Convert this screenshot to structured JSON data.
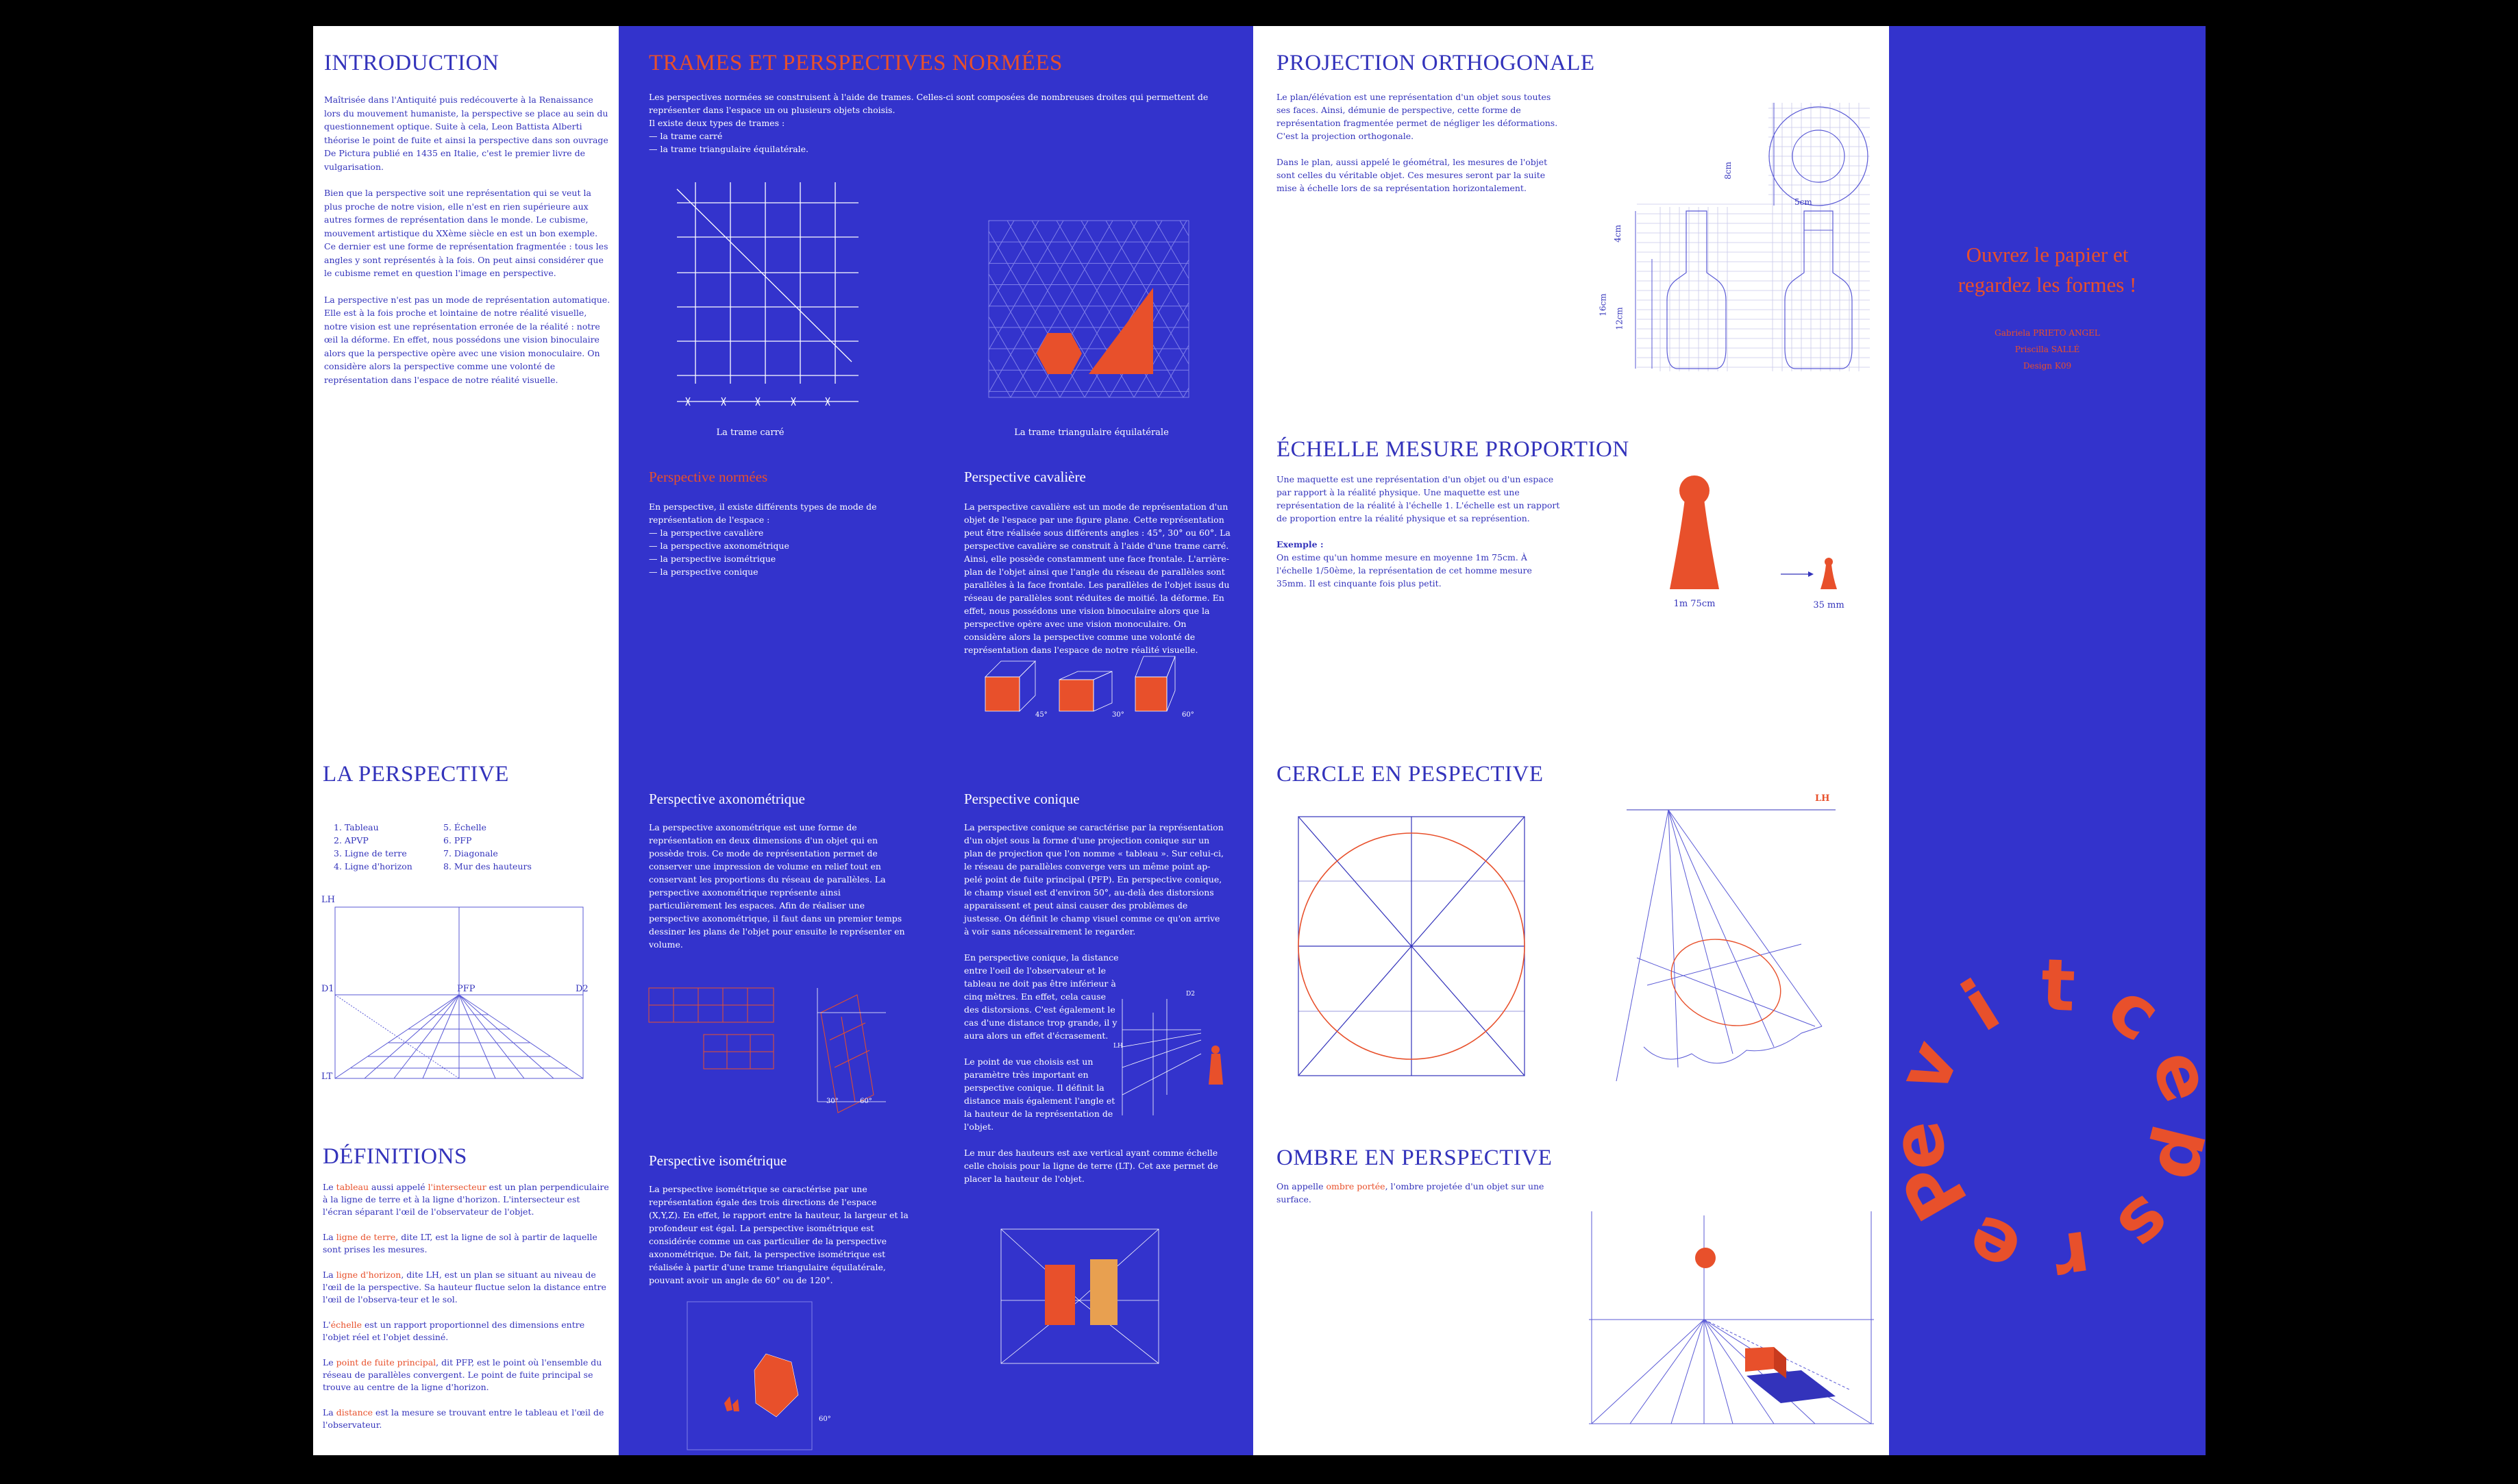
{
  "panel1": {
    "intro": {
      "title": "INTRODUCTION",
      "p1": "Maîtrisée dans l'Antiquité puis redécouverte à la Renaissance lors du mouvement humaniste, la perspective se place au sein du questionnement optique. Suite à cela, Leon Battista Alberti théorise le point de fuite et ainsi la perspective dans son ouvrage De Pictura publié en 1435 en Italie, c'est le premier livre de vulgarisation.",
      "p2": "Bien que la perspective soit une représentation qui se veut la plus proche de notre vision, elle n'est en rien supérieure aux autres formes de représentation dans le monde. Le cubisme, mouvement artistique du XXème siècle en est un bon exemple. Ce dernier est une forme de représentation fragmentée : tous les angles y sont représentés à la fois. On peut ainsi considérer que le cubisme remet en question l'image en perspective.",
      "p3": "La perspective n'est pas un mode de représentation automatique. Elle est à la fois proche et lointaine de notre réalité visuelle, notre vision est une représentation erronée de la réalité : notre œil la déforme. En effet, nous possédons une vision binoculaire alors que la perspective opère avec une vision monoculaire. On considère alors la perspective comme une volonté de représentation dans l'espace de notre réalité visuelle."
    },
    "perspective": {
      "title": "LA PERSPECTIVE",
      "list_left": [
        "1. Tableau",
        "2. APVP",
        "3. Ligne de terre",
        "4. Ligne d'horizon"
      ],
      "list_right": [
        "5. Échelle",
        "6. PFP",
        "7. Diagonale",
        "8. Mur des hauteurs"
      ],
      "labels": {
        "lh": "LH",
        "d1": "D1",
        "pfp": "PFP",
        "d2": "D2",
        "lt": "LT"
      }
    },
    "definitions": {
      "title": "DÉFINITIONS",
      "d1_a": "Le ",
      "d1_h1": "tableau",
      "d1_b": " aussi appelé ",
      "d1_h2": "l'intersecteur",
      "d1_c": " est un plan perpendiculaire à la ligne de terre et à la ligne d'horizon. L'intersecteur est l'écran séparant l'œil de l'observateur de l'objet.",
      "d2_a": "La ",
      "d2_h": "ligne de terre",
      "d2_b": ", dite LT, est la ligne de sol à partir de laquelle sont prises les mesures.",
      "d3_a": "La ",
      "d3_h": "ligne d'horizon",
      "d3_b": ", dite LH, est un plan se situant au niveau de l'œil de la perspective. Sa hauteur fluctue selon la distance entre l'œil de l'observa-teur et le sol.",
      "d4_a": "L'",
      "d4_h": "échelle",
      "d4_b": " est un rapport proportionnel des dimensions entre l'objet réel et l'objet dessiné.",
      "d5_a": "Le ",
      "d5_h": "point de fuite principal",
      "d5_b": ", dit PFP, est le point où l'ensemble du réseau de parallèles convergent. Le point de fuite principal se trouve au centre de la ligne d'horizon.",
      "d6_a": "La ",
      "d6_h": "distance",
      "d6_b": " est la mesure se trouvant entre le tableau et l'œil de l'observateur."
    }
  },
  "panel2": {
    "trames": {
      "title": "TRAMES ET PERSPECTIVES NORMÉES",
      "text": "Les perspectives normées se construisent à l'aide de trames. Celles-ci sont composées de nombreuses droites qui permettent de représenter dans l'espace un ou plusieurs objets choisis.",
      "text2": "Il existe deux types de trames :",
      "item1": "— la trame carré",
      "item2": "— la trame triangulaire équilatérale.",
      "cap1": "La trame carré",
      "cap2": "La trame triangulaire équilatérale"
    },
    "normees": {
      "title": "Perspective normées",
      "text": "En perspective, il existe différents types de mode de représentation de l'espace :",
      "items": [
        "— la perspective cavalière",
        "— la perspective axonométrique",
        "— la perspective isométrique",
        "— la perspective conique"
      ]
    },
    "cavaliere": {
      "title": "Perspective cavalière",
      "text": "La perspective cavalière est un mode de représentation d'un objet de l'espace par une figure plane. Cette représentation peut être réalisée sous différents angles : 45°, 30° ou 60°. La perspective cavalière se construit à l'aide d'une trame carré. Ainsi, elle possède constamment une face frontale. L'arrière-plan de l'objet ainsi que l'angle du réseau de parallèles sont parallèles à la face frontale. Les parallèles de l'objet issus du réseau de parallèles sont réduites de moitié. la déforme. En effet, nous possédons une vision binoculaire alors que la perspective opère avec une vision monoculaire. On considère alors la perspective comme une volonté de représentation dans l'espace de notre réalité visuelle.",
      "a1": "45°",
      "a2": "30°",
      "a3": "60°"
    },
    "axono": {
      "title": "Perspective axonométrique",
      "text": "La perspective axonométrique est une forme de représentation en deux dimensions d'un objet qui en possède trois. Ce mode de représentation permet de conserver une impression de volume en relief tout en conservant les proportions du réseau de parallèles. La perspective axonométrique représente ainsi particulièrement les espaces. Afin de réaliser une perspective axonométrique, il faut dans un premier temps dessiner les plans de l'objet pour ensuite le représenter en volume.",
      "a1": "30°",
      "a2": "60°"
    },
    "conique": {
      "title": "Perspective conique",
      "p1": "La perspective conique se caractérise par la représentation d'un objet sous la forme d'une projection conique sur un plan de projection que l'on nomme « tableau ». Sur celui-ci, le réseau de parallèles converge vers un même point ap-pelé point de fuite principal (PFP). En perspective conique, le champ visuel est d'environ 50°, au-delà des distorsions apparaissent et peut ainsi causer des problèmes de justesse. On définit le champ visuel comme ce qu'on arrive à voir sans nécessairement le regarder.",
      "p2": "En perspective conique, la distance entre l'oeil de l'observateur et le tableau ne doit pas être inférieur à cinq mètres. En effet, cela cause des distorsions. C'est également le cas d'une distance trop grande, il y aura alors un effet d'écrasement.",
      "p3": "Le point de vue choisis est un paramètre très important en perspective conique. Il définit la distance mais également l'angle et la hauteur de la représentation de l'objet.",
      "p4": "Le mur des hauteurs est axe vertical ayant comme échelle celle choisis pour la ligne de terre (LT). Cet axe permet de placer la hauteur de l'objet.",
      "d2": "D2",
      "lh": "LH"
    },
    "iso": {
      "title": "Perspective isométrique",
      "text": "La perspective isométrique se caractérise par une représentation égale des trois directions de l'espace (X,Y,Z). En effet, le rapport entre la hauteur, la largeur et la profondeur est égal. La perspective isométrique est considérée comme un cas particulier de la perspective axonométrique. De fait, la perspective isométrique est réalisée à partir d'une trame triangulaire équilatérale, pouvant avoir un angle de 60° ou de 120°.",
      "angle": "60°"
    }
  },
  "panel3": {
    "ortho": {
      "title": "PROJECTION ORTHOGONALE",
      "p1": "Le plan/élévation est une représentation d'un objet sous toutes ses faces. Ainsi, démunie de perspective, cette forme de représentation fragmentée permet de négliger les déformations. C'est la projection orthogonale.",
      "p2": "Dans le plan, aussi appelé le géométral, les mesures de l'objet sont celles du véritable objet. Ces mesures seront par la suite mise à échelle lors de sa représentation horizontalement.",
      "dims": {
        "d8": "8cm",
        "d5": "5cm",
        "d4": "4cm",
        "d16": "16cm",
        "d12": "12cm"
      }
    },
    "echelle": {
      "title": "ÉCHELLE MESURE PROPORTION",
      "p1": "Une maquette est une représentation d'un objet ou d'un espace par rapport à la réalité physique. Une maquette est une représentation de la réalité à l'échelle 1. L'échelle est un rapport de proportion entre la réalité physique et sa représention.",
      "ex_title": "Exemple :",
      "ex_text": "On estime qu'un homme mesure en moyenne 1m 75cm. À l'échelle 1/50ème, la représentation de cet homme mesure 35mm. Il est cinquante fois plus petit.",
      "cap1": "1m 75cm",
      "cap2": "35 mm"
    },
    "cercle": {
      "title": "CERCLE EN PESPECTIVE",
      "lh": "LH"
    },
    "ombre": {
      "title": "OMBRE EN PERSPECTIVE",
      "text_a": "On appelle ",
      "text_h": "ombre portée",
      "text_b": ", l'ombre projetée d'un objet sur une surface."
    }
  },
  "panel4": {
    "tagline1": "Ouvrez le papier et",
    "tagline2": "regardez les formes !",
    "credit1": "Gabriela PRIETO ANGEL",
    "credit2": "Priscilla SALLÉ",
    "credit3": "Design K09",
    "word_letters": [
      "P",
      "e",
      "r",
      "s",
      "p",
      "e",
      "c",
      "t",
      "i",
      "v",
      "e"
    ]
  },
  "colors": {
    "blue": "#3333cc",
    "orange": "#e8502b",
    "white": "#ffffff",
    "black": "#000000"
  }
}
